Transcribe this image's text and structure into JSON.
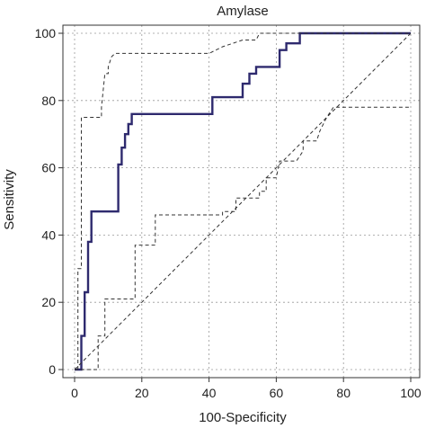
{
  "chart_data": {
    "type": "line",
    "title": "Amylase",
    "xlabel": "100-Specificity",
    "ylabel": "Sensitivity",
    "xlim": [
      0,
      100
    ],
    "ylim": [
      0,
      100
    ],
    "xticks": [
      0,
      20,
      40,
      60,
      80,
      100
    ],
    "yticks": [
      0,
      20,
      40,
      60,
      80,
      100
    ],
    "grid": true,
    "series": [
      {
        "style": "solid",
        "color": "#2e2a6e",
        "x": [
          0,
          2,
          2,
          3,
          3,
          4,
          4,
          5,
          5,
          13,
          13,
          14,
          14,
          15,
          15,
          16,
          16,
          17,
          17,
          41,
          41,
          50,
          50,
          52,
          52,
          54,
          54,
          61,
          61,
          63,
          63,
          67,
          67,
          100
        ],
        "y": [
          0,
          0,
          10,
          10,
          23,
          23,
          38,
          38,
          47,
          47,
          61,
          61,
          66,
          66,
          70,
          70,
          73,
          73,
          76,
          76,
          81,
          81,
          85,
          85,
          88,
          88,
          90,
          90,
          95,
          95,
          97,
          97,
          100,
          100
        ]
      },
      {
        "style": "dashed",
        "color": "#333333",
        "x": [
          1,
          1,
          2,
          2,
          8,
          8,
          9,
          10,
          10,
          11,
          12,
          40,
          44,
          50,
          54,
          55,
          65,
          67,
          100
        ],
        "y": [
          0,
          30,
          30,
          75,
          75,
          78,
          88,
          88,
          90,
          93,
          94,
          94,
          96,
          98,
          98,
          100,
          100,
          100,
          100
        ]
      },
      {
        "style": "dashed",
        "color": "#333333",
        "x": [
          0,
          7,
          7,
          9,
          9,
          18,
          18,
          24,
          24,
          26,
          28,
          32,
          44,
          44,
          48,
          48,
          52,
          55,
          55,
          57,
          57,
          60,
          61,
          64,
          66,
          68,
          68,
          72,
          73,
          75,
          77,
          100
        ],
        "y": [
          0,
          0,
          10,
          10,
          21,
          21,
          37,
          37,
          46,
          46,
          46,
          46,
          46,
          47,
          47,
          51,
          51,
          51,
          53,
          53,
          57,
          57,
          62,
          62,
          62,
          65,
          68,
          68,
          71,
          75,
          78,
          78
        ]
      },
      {
        "style": "dashed",
        "color": "#333333",
        "role": "reference",
        "x": [
          0,
          100
        ],
        "y": [
          0,
          100
        ]
      }
    ]
  }
}
